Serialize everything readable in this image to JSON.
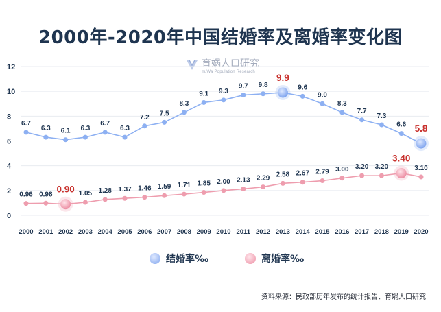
{
  "title": "2000年-2020年中国结婚率及离婚率变化图",
  "watermark": {
    "name": "育娲人口研究",
    "sub": "YuWa Population Research"
  },
  "legend": {
    "marriage": "结婚率‰",
    "divorce": "离婚率‰"
  },
  "source": "资料来源：民政部历年发布的统计报告、育娲人口研究",
  "colors": {
    "title": "#1f3550",
    "marriage": "#8db0f2",
    "divorce": "#ee9dae",
    "highlight": "#c8302c",
    "label": "#1f3550",
    "grid": "#e8ebf0"
  },
  "chart_data": {
    "type": "line",
    "title": "2000年-2020年中国结婚率及离婚率变化图",
    "categories": [
      "2000",
      "2001",
      "2002",
      "2003",
      "2004",
      "2005",
      "2006",
      "2007",
      "2008",
      "2009",
      "2010",
      "2011",
      "2012",
      "2013",
      "2014",
      "2015",
      "2016",
      "2017",
      "2018",
      "2019",
      "2020"
    ],
    "ylim": [
      0,
      12
    ],
    "yticks": [
      "0",
      "2",
      "4",
      "6",
      "8",
      "10",
      "12"
    ],
    "grid": true,
    "legend_position": "bottom",
    "series": [
      {
        "name": "结婚率‰",
        "values": [
          6.7,
          6.3,
          6.1,
          6.3,
          6.7,
          6.3,
          7.2,
          7.5,
          8.3,
          9.1,
          9.3,
          9.7,
          9.8,
          9.9,
          9.6,
          9.0,
          8.3,
          7.7,
          7.3,
          6.6,
          5.8
        ],
        "labels": [
          "6.7",
          "6.3",
          "6.1",
          "6.3",
          "6.7",
          "6.3",
          "7.2",
          "7.5",
          "8.3",
          "9.1",
          "9.3",
          "9.7",
          "9.8",
          "9.9",
          "9.6",
          "9.0",
          "8.3",
          "7.7",
          "7.3",
          "6.6",
          "5.8"
        ],
        "highlight_years": [
          "2013",
          "2020"
        ]
      },
      {
        "name": "离婚率‰",
        "values": [
          0.96,
          0.98,
          0.9,
          1.05,
          1.28,
          1.37,
          1.46,
          1.59,
          1.71,
          1.85,
          2.0,
          2.13,
          2.29,
          2.58,
          2.67,
          2.79,
          3.0,
          3.2,
          3.2,
          3.4,
          3.1
        ],
        "labels": [
          "0.96",
          "0.98",
          "0.90",
          "1.05",
          "1.28",
          "1.37",
          "1.46",
          "1.59",
          "1.71",
          "1.85",
          "2.00",
          "2.13",
          "2.29",
          "2.58",
          "2.67",
          "2.79",
          "3.00",
          "3.20",
          "3.20",
          "3.40",
          "3.10"
        ],
        "highlight_years": [
          "2002",
          "2019"
        ]
      }
    ]
  }
}
